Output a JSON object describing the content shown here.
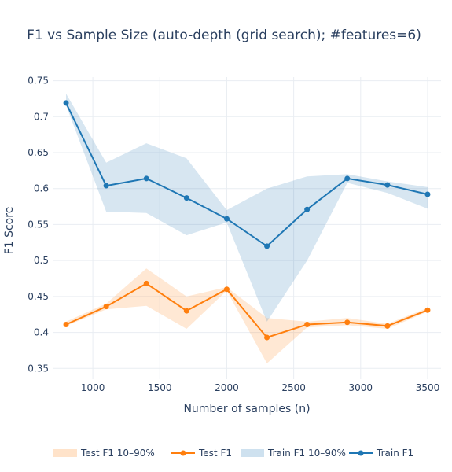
{
  "chart_data": {
    "type": "line",
    "title": "F1 vs Sample Size (auto-depth (grid search); #features=6)",
    "xlabel": "Number of samples (n)",
    "ylabel": "F1 Score",
    "xlim": [
      700,
      3600
    ],
    "ylim": [
      0.335,
      0.755
    ],
    "xticks": [
      1000,
      1500,
      2000,
      2500,
      3000,
      3500
    ],
    "xtick_labels": [
      "1000",
      "1500",
      "2000",
      "2500",
      "3000",
      "3500"
    ],
    "yticks": [
      0.35,
      0.4,
      0.45,
      0.5,
      0.55,
      0.6,
      0.65,
      0.7,
      0.75
    ],
    "ytick_labels": [
      "0.35",
      "0.4",
      "0.45",
      "0.5",
      "0.55",
      "0.6",
      "0.65",
      "0.7",
      "0.75"
    ],
    "grid": true,
    "legend_position": "bottom",
    "x": [
      800,
      1100,
      1400,
      1700,
      2000,
      2300,
      2600,
      2900,
      3200,
      3500
    ],
    "series": [
      {
        "name": "Test F1 10–90%",
        "kind": "band",
        "color": "#ff7f0e",
        "lower": [
          0.409,
          0.432,
          0.437,
          0.405,
          0.458,
          0.357,
          0.407,
          0.41,
          0.405,
          0.429
        ],
        "upper": [
          0.415,
          0.44,
          0.489,
          0.45,
          0.463,
          0.42,
          0.415,
          0.42,
          0.412,
          0.434
        ]
      },
      {
        "name": "Test F1",
        "kind": "line",
        "color": "#ff7f0e",
        "values": [
          0.411,
          0.436,
          0.468,
          0.43,
          0.46,
          0.393,
          0.411,
          0.414,
          0.409,
          0.431
        ]
      },
      {
        "name": "Train F1 10–90%",
        "kind": "band",
        "color": "#1f77b4",
        "lower": [
          0.716,
          0.568,
          0.566,
          0.535,
          0.553,
          0.415,
          0.5,
          0.608,
          0.594,
          0.572
        ],
        "upper": [
          0.732,
          0.636,
          0.663,
          0.642,
          0.57,
          0.6,
          0.617,
          0.62,
          0.61,
          0.602
        ]
      },
      {
        "name": "Train F1",
        "kind": "line",
        "color": "#1f77b4",
        "values": [
          0.719,
          0.604,
          0.614,
          0.587,
          0.558,
          0.52,
          0.571,
          0.614,
          0.605,
          0.592
        ]
      }
    ]
  }
}
